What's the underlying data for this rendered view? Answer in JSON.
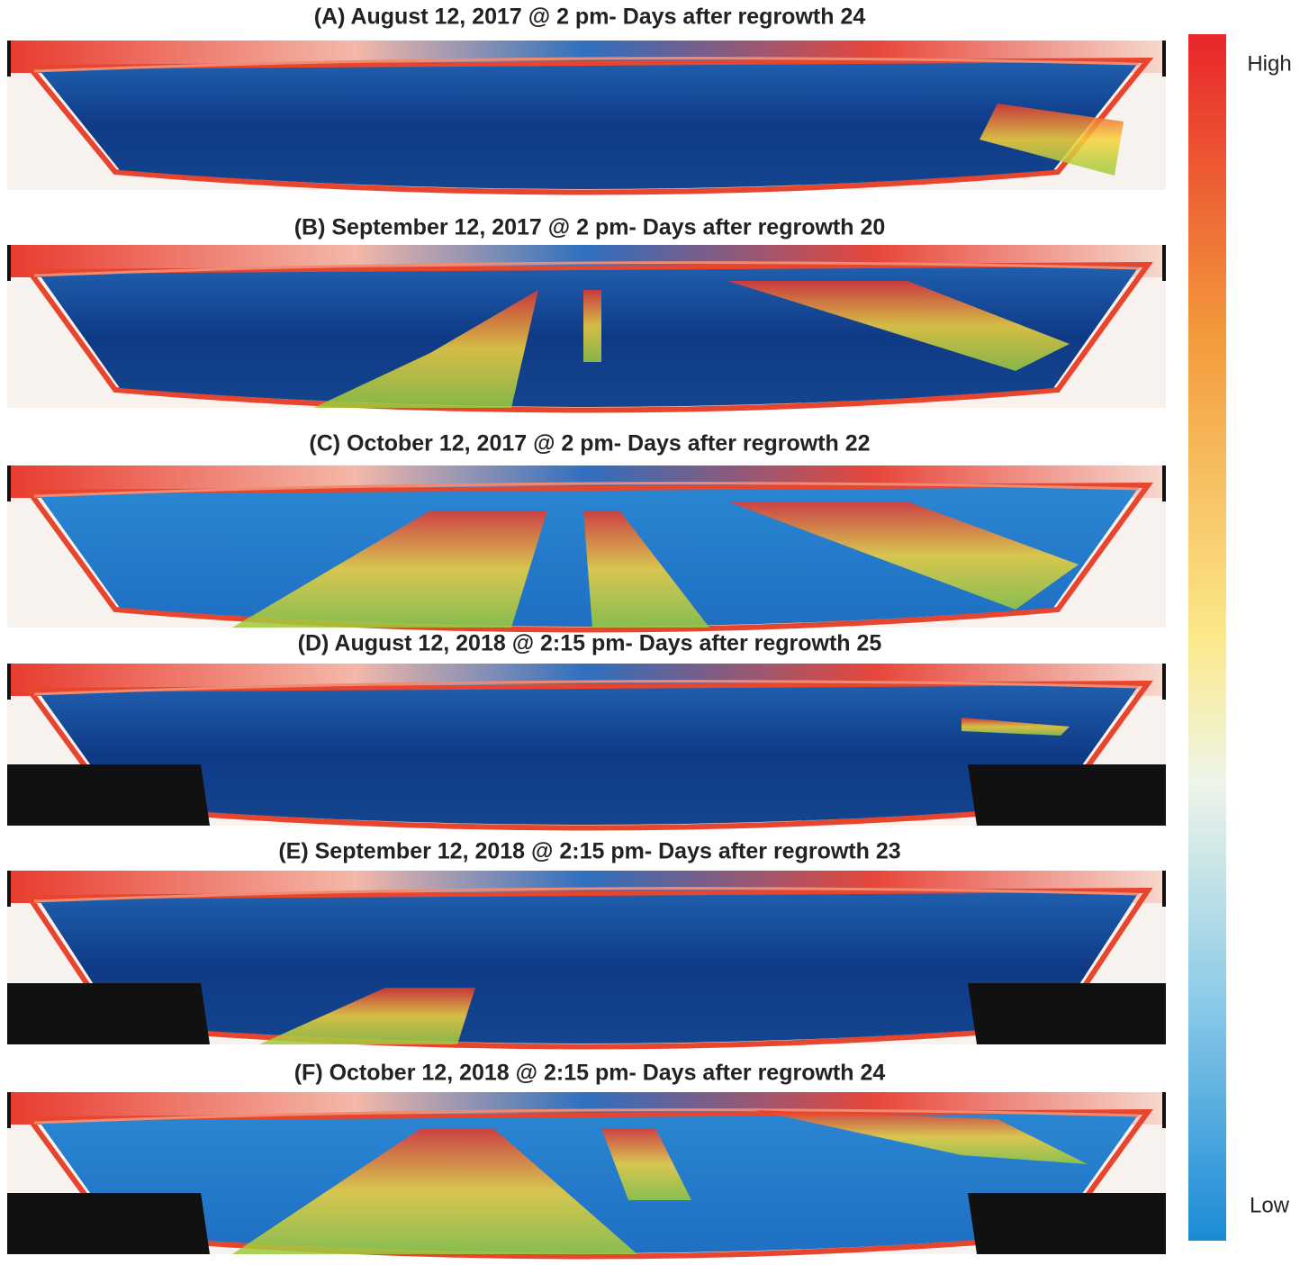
{
  "panels": [
    {
      "title": "(A) August 12, 2017 @ 2 pm- Days after regrowth 24"
    },
    {
      "title": "(B) September 12, 2017 @ 2 pm- Days after regrowth 20"
    },
    {
      "title": "(C) October 12, 2017 @ 2 pm- Days after regrowth 22"
    },
    {
      "title": "(D) August 12, 2018 @ 2:15 pm- Days after regrowth 25"
    },
    {
      "title": "(E) September 12, 2018 @ 2:15 pm- Days after regrowth 23"
    },
    {
      "title": "(F) October 12, 2018 @ 2:15 pm- Days after regrowth 24"
    }
  ],
  "colorbar": {
    "high": "High",
    "low": "Low"
  }
}
